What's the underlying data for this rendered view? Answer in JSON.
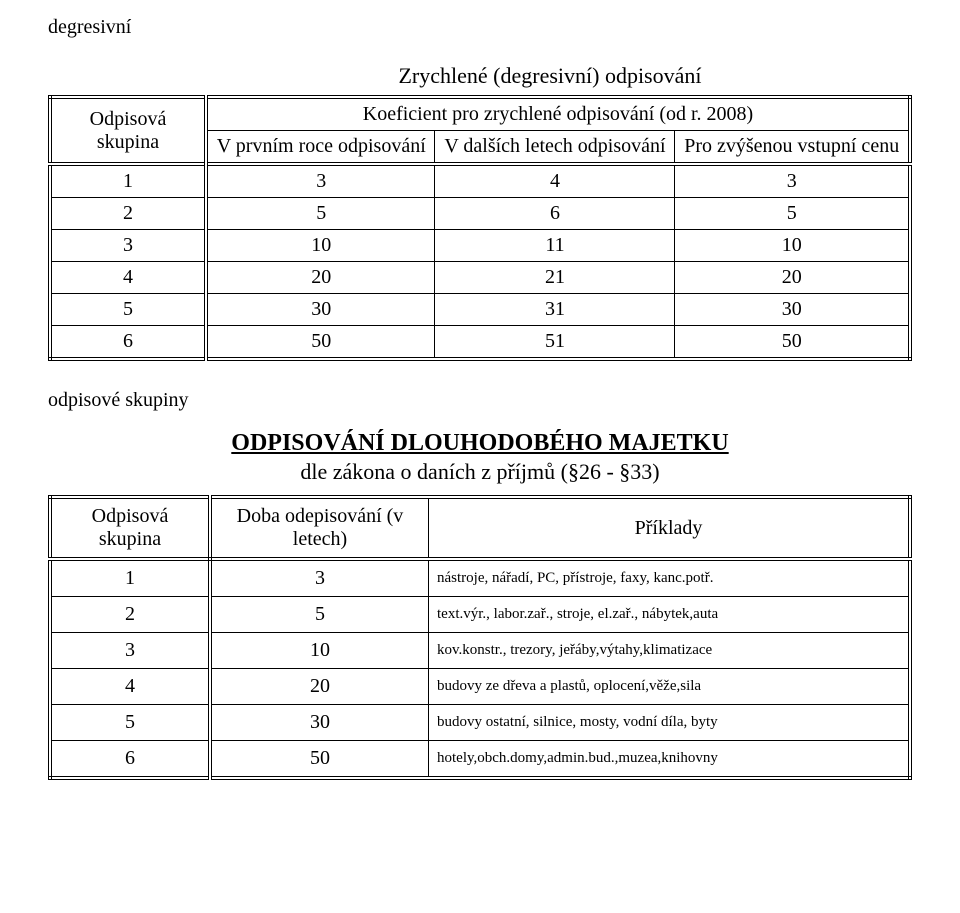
{
  "topLabel": "degresivní",
  "table1": {
    "title": "Zrychlené (degresivní) odpisování",
    "headerCol1": "Odpisová skupina",
    "headerMerge": "Koeficient pro zrychlené odpisování (od r. 2008)",
    "subHeaders": [
      "V prvním roce odpisování",
      "V dalších letech odpisování",
      "Pro zvýšenou vstupní cenu"
    ],
    "rows": [
      [
        "1",
        "3",
        "4",
        "3"
      ],
      [
        "2",
        "5",
        "6",
        "5"
      ],
      [
        "3",
        "10",
        "11",
        "10"
      ],
      [
        "4",
        "20",
        "21",
        "20"
      ],
      [
        "5",
        "30",
        "31",
        "30"
      ],
      [
        "6",
        "50",
        "51",
        "50"
      ]
    ]
  },
  "midLabel": "odpisové skupiny",
  "sectionTitle": "ODPISOVÁNÍ DLOUHODOBÉHO MAJETKU",
  "sectionSub": "dle zákona o daních z příjmů (§26 - §33)",
  "table2": {
    "headers": [
      "Odpisová skupina",
      "Doba odepisování (v letech)",
      "Příklady"
    ],
    "rows": [
      [
        "1",
        "3",
        "nástroje, nářadí, PC, přístroje, faxy, kanc.potř."
      ],
      [
        "2",
        "5",
        "text.výr., labor.zař., stroje, el.zař., nábytek,auta"
      ],
      [
        "3",
        "10",
        "kov.konstr., trezory, jeřáby,výtahy,klimatizace"
      ],
      [
        "4",
        "20",
        "budovy ze dřeva a plastů, oplocení,věže,sila"
      ],
      [
        "5",
        "30",
        "budovy ostatní, silnice, mosty, vodní díla, byty"
      ],
      [
        "6",
        "50",
        "hotely,obch.domy,admin.bud.,muzea,knihovny"
      ]
    ]
  }
}
